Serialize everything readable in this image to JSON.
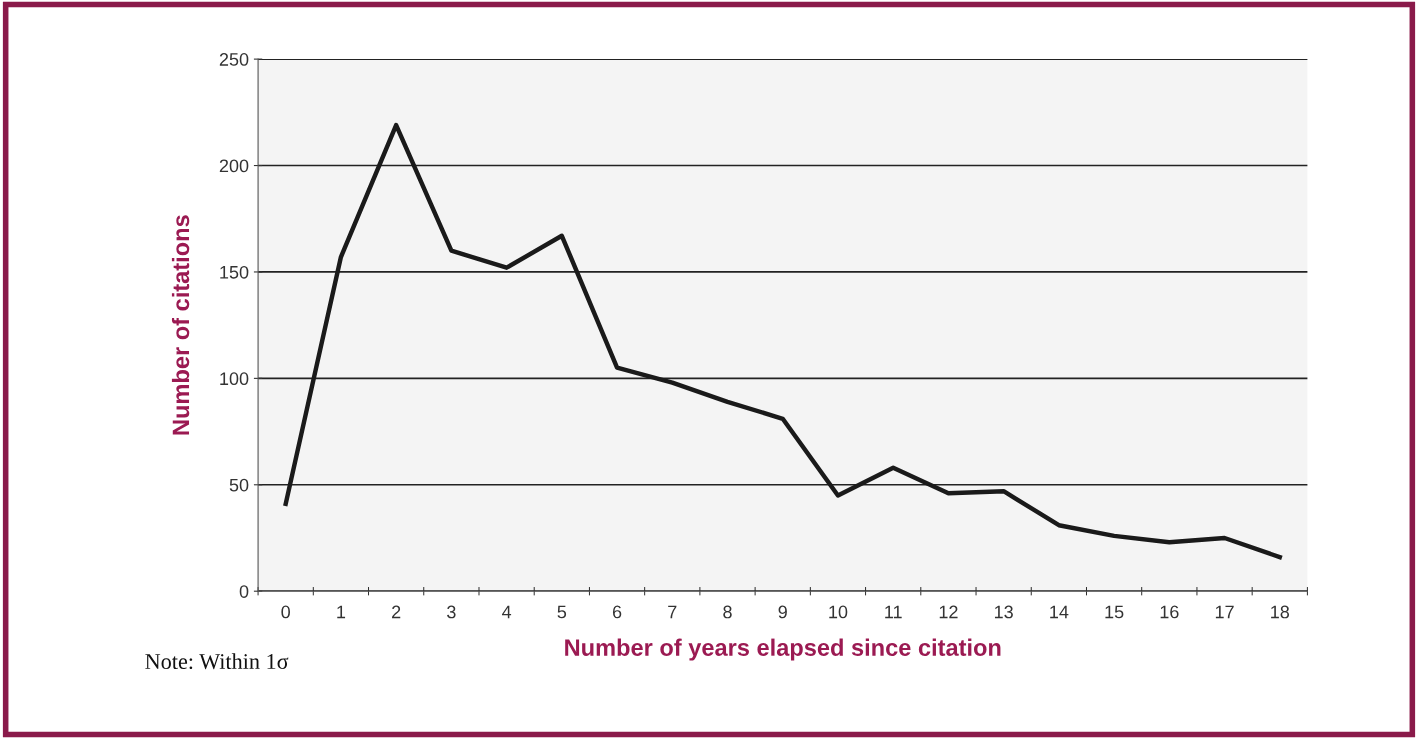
{
  "chart_data": {
    "type": "line",
    "categories": [
      "0",
      "1",
      "2",
      "3",
      "4",
      "5",
      "6",
      "7",
      "8",
      "9",
      "10",
      "11",
      "12",
      "13",
      "14",
      "15",
      "16",
      "17",
      "18"
    ],
    "series": [
      {
        "color": "#1a1a1a",
        "values": [
          41,
          157,
          219,
          160,
          152,
          167,
          105,
          98,
          89,
          81,
          45,
          58,
          46,
          47,
          31,
          26,
          23,
          25,
          16
        ]
      }
    ],
    "xlabel": "Number of years elapsed since citation",
    "ylabel": "Number of citations",
    "ylim": [
      0,
      250
    ],
    "yticks": [
      0,
      50,
      100,
      150,
      200,
      250
    ],
    "grid": "y",
    "marker": "none",
    "line_style": "solid",
    "annotations": [
      "Note: Within 1σ"
    ]
  }
}
